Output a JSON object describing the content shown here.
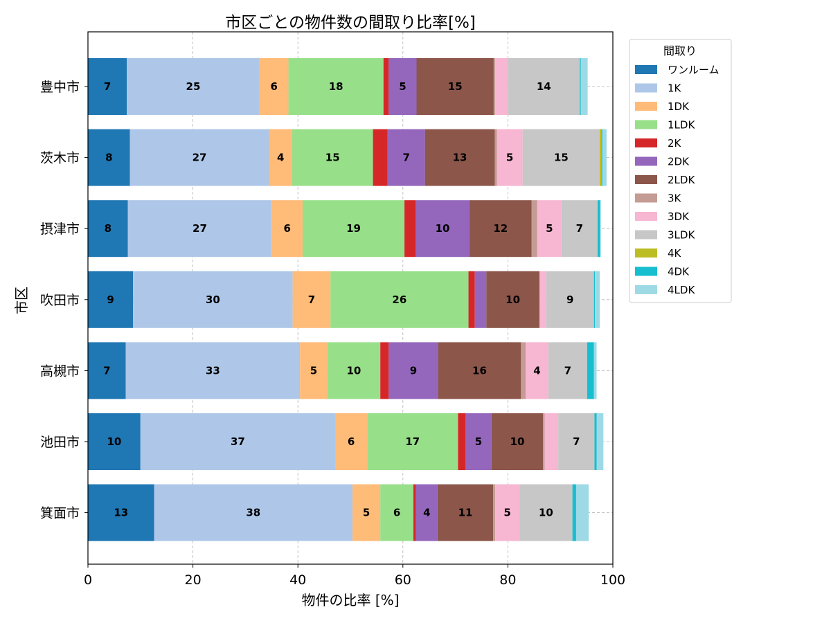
{
  "chart_data": {
    "type": "bar",
    "orientation": "horizontal",
    "stacked": true,
    "title": "市区ごとの物件数の間取り比率[%]",
    "xlabel": "物件の比率 [%]",
    "ylabel": "市区",
    "xlim": [
      0,
      100
    ],
    "xticks": [
      "0",
      "20",
      "40",
      "60",
      "80",
      "100"
    ],
    "grid": true,
    "legend_title": "間取り",
    "legend_position": "outside-top-right",
    "label_threshold": 3.5,
    "categories": [
      "豊中市",
      "茨木市",
      "摂津市",
      "吹田市",
      "高槻市",
      "池田市",
      "箕面市"
    ],
    "series": [
      {
        "name": "ワンルーム",
        "color": "#1f77b4",
        "values": [
          7.4,
          8.0,
          7.6,
          8.6,
          7.2,
          10.0,
          12.6
        ]
      },
      {
        "name": "1K",
        "color": "#aec7e8",
        "values": [
          25.3,
          26.5,
          27.4,
          30.4,
          33.2,
          37.1,
          37.8
        ]
      },
      {
        "name": "1DK",
        "color": "#ffbb78",
        "values": [
          5.5,
          4.4,
          5.9,
          7.2,
          5.2,
          6.1,
          5.3
        ]
      },
      {
        "name": "1LDK",
        "color": "#98df8a",
        "values": [
          18.1,
          15.4,
          19.4,
          26.3,
          10.1,
          17.3,
          6.3
        ]
      },
      {
        "name": "2K",
        "color": "#d62728",
        "values": [
          1.0,
          2.8,
          2.1,
          1.2,
          1.6,
          1.4,
          0.5
        ]
      },
      {
        "name": "2DK",
        "color": "#9467bd",
        "values": [
          5.3,
          7.1,
          10.3,
          2.2,
          9.4,
          5.0,
          4.1
        ]
      },
      {
        "name": "2LDK",
        "color": "#8c564b",
        "values": [
          14.7,
          13.3,
          11.8,
          10.1,
          15.8,
          9.8,
          10.6
        ]
      },
      {
        "name": "3K",
        "color": "#c49c94",
        "values": [
          0.3,
          0.4,
          1.1,
          0.1,
          0.9,
          0.3,
          0.4
        ]
      },
      {
        "name": "3DK",
        "color": "#f7b6d2",
        "values": [
          2.4,
          4.9,
          4.6,
          1.2,
          4.3,
          2.6,
          4.6
        ]
      },
      {
        "name": "3LDK",
        "color": "#c7c7c7",
        "values": [
          13.7,
          14.7,
          6.9,
          9.1,
          7.4,
          6.9,
          10.1
        ]
      },
      {
        "name": "4K",
        "color": "#bcbd22",
        "values": [
          0.0,
          0.3,
          0.0,
          0.0,
          0.0,
          0.0,
          0.0
        ]
      },
      {
        "name": "4DK",
        "color": "#17becf",
        "values": [
          0.2,
          0.2,
          0.5,
          0.2,
          1.3,
          0.4,
          0.7
        ]
      },
      {
        "name": "4LDK",
        "color": "#9edae5",
        "values": [
          1.3,
          0.8,
          0.1,
          0.9,
          0.5,
          1.3,
          2.4
        ]
      }
    ]
  }
}
